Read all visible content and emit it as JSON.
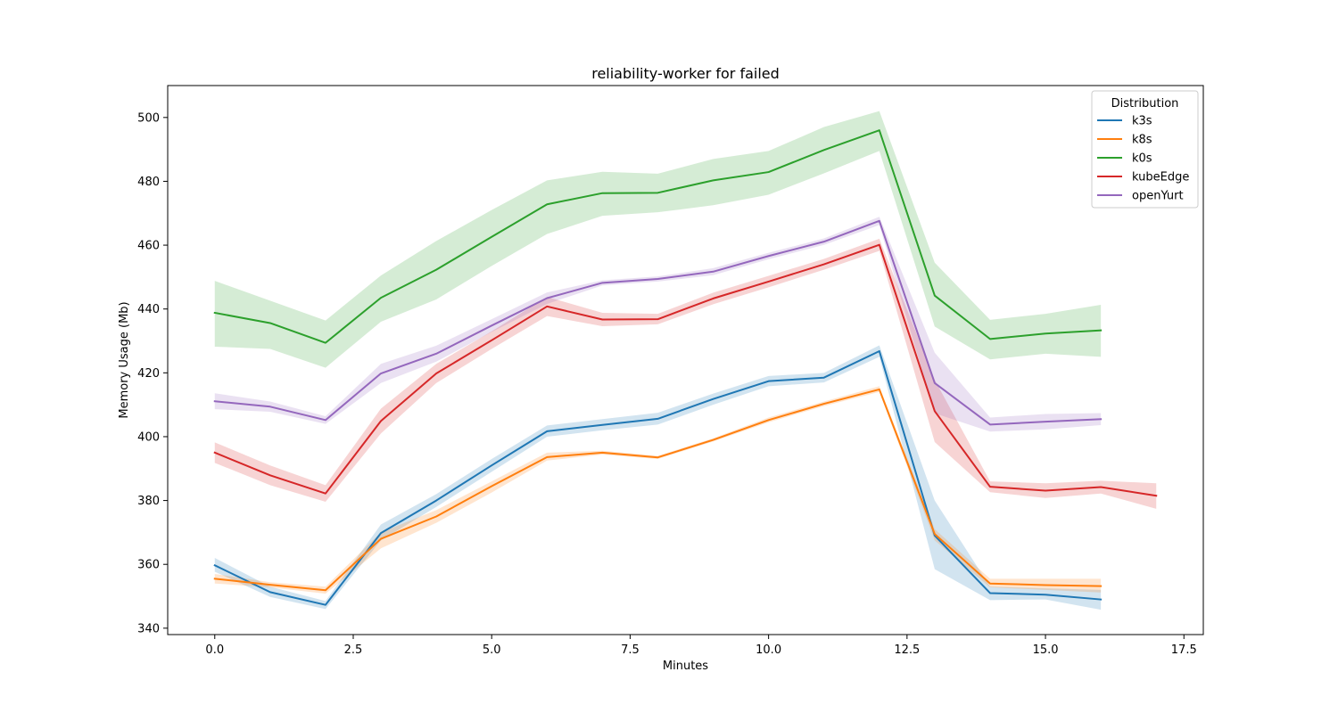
{
  "chart_data": {
    "type": "line",
    "title": "reliability-worker for failed",
    "xlabel": "Minutes",
    "ylabel": "Memory Usage (Mb)",
    "xlim": [
      -0.85,
      17.85
    ],
    "ylim": [
      338,
      510
    ],
    "xticks": [
      0.0,
      2.5,
      5.0,
      7.5,
      10.0,
      12.5,
      15.0,
      17.5
    ],
    "xtick_labels": [
      "0.0",
      "2.5",
      "5.0",
      "7.5",
      "10.0",
      "12.5",
      "15.0",
      "17.5"
    ],
    "yticks": [
      340,
      360,
      380,
      400,
      420,
      440,
      460,
      480,
      500
    ],
    "ytick_labels": [
      "340",
      "360",
      "380",
      "400",
      "420",
      "440",
      "460",
      "480",
      "500"
    ],
    "legend": {
      "title": "Distribution",
      "placement": "top-right"
    },
    "series": [
      {
        "name": "k3s",
        "color": "#1f77b4",
        "x": [
          0,
          1,
          2,
          3,
          4,
          5,
          6,
          7,
          8,
          9,
          10,
          11,
          12,
          13,
          14,
          15,
          16
        ],
        "values": [
          359.7,
          351.3,
          347.3,
          369.8,
          380.0,
          391.0,
          401.7,
          403.7,
          405.6,
          411.8,
          417.4,
          418.5,
          426.8,
          369.0,
          351.0,
          350.5,
          349.0
        ],
        "lower": [
          357.7,
          349.8,
          346.0,
          367.5,
          378.0,
          389.0,
          400.0,
          402.0,
          403.8,
          410.0,
          415.8,
          417.0,
          425.0,
          358.5,
          348.8,
          349.0,
          345.8
        ],
        "upper": [
          362.0,
          353.0,
          348.5,
          372.5,
          382.0,
          393.0,
          403.5,
          405.5,
          407.5,
          413.5,
          419.0,
          420.0,
          428.6,
          380.0,
          353.0,
          352.5,
          352.0
        ]
      },
      {
        "name": "k8s",
        "color": "#ff7f0e",
        "x": [
          0,
          1,
          2,
          3,
          4,
          5,
          6,
          7,
          8,
          9,
          10,
          11,
          12,
          13,
          14,
          15,
          16
        ],
        "values": [
          355.5,
          353.6,
          351.9,
          368.0,
          375.0,
          384.5,
          393.6,
          395.0,
          393.5,
          399.0,
          405.2,
          410.3,
          414.8,
          369.5,
          354.0,
          353.5,
          353.2
        ],
        "lower": [
          354.0,
          352.8,
          350.8,
          365.0,
          373.0,
          382.5,
          392.5,
          394.4,
          393.0,
          398.5,
          404.5,
          409.6,
          414.0,
          367.5,
          352.8,
          352.0,
          351.2
        ],
        "upper": [
          357.0,
          354.4,
          353.0,
          370.0,
          377.0,
          386.0,
          395.0,
          395.6,
          394.0,
          399.5,
          406.0,
          411.0,
          415.8,
          371.0,
          355.5,
          355.5,
          355.5
        ]
      },
      {
        "name": "k0s",
        "color": "#2ca02c",
        "x": [
          0,
          1,
          2,
          3,
          4,
          5,
          6,
          7,
          8,
          9,
          10,
          11,
          12,
          13,
          14,
          15,
          16
        ],
        "values": [
          438.8,
          435.6,
          429.4,
          443.5,
          452.3,
          462.6,
          472.8,
          476.3,
          476.4,
          480.3,
          482.9,
          489.8,
          496.0,
          444.2,
          430.6,
          432.3,
          433.3
        ],
        "lower": [
          428.2,
          427.5,
          421.6,
          436.0,
          443.0,
          453.5,
          463.5,
          469.2,
          470.3,
          472.5,
          475.8,
          482.5,
          489.5,
          434.5,
          424.2,
          426.0,
          425.0
        ],
        "upper": [
          448.8,
          442.6,
          436.4,
          450.5,
          461.3,
          471.0,
          480.3,
          483.0,
          482.4,
          487.0,
          489.5,
          497.0,
          502.0,
          454.5,
          436.6,
          438.5,
          441.3
        ]
      },
      {
        "name": "kubeEdge",
        "color": "#d62728",
        "x": [
          0,
          1,
          2,
          3,
          4,
          5,
          6,
          7,
          8,
          9,
          10,
          11,
          12,
          13,
          14,
          15,
          16,
          17
        ],
        "values": [
          395.0,
          387.9,
          382.2,
          404.9,
          419.8,
          430.2,
          440.8,
          436.7,
          436.8,
          443.3,
          448.6,
          454.0,
          460.1,
          408.0,
          384.3,
          383.1,
          384.2,
          381.5
        ],
        "lower": [
          391.8,
          384.8,
          379.6,
          401.0,
          416.8,
          427.5,
          437.8,
          434.6,
          435.2,
          441.5,
          446.8,
          452.3,
          458.2,
          398.3,
          382.6,
          380.8,
          382.2,
          377.4
        ],
        "upper": [
          398.2,
          391.0,
          384.8,
          408.8,
          422.8,
          433.0,
          443.8,
          438.8,
          438.5,
          445.1,
          450.4,
          455.7,
          462.0,
          417.8,
          386.0,
          385.4,
          386.2,
          385.4
        ]
      },
      {
        "name": "openYurt",
        "color": "#9467bd",
        "x": [
          0,
          1,
          2,
          3,
          4,
          5,
          6,
          7,
          8,
          9,
          10,
          11,
          12,
          13,
          14,
          15,
          16
        ],
        "values": [
          411.1,
          409.4,
          405.2,
          419.8,
          426.0,
          434.8,
          443.4,
          448.2,
          449.4,
          451.7,
          456.6,
          461.1,
          467.6,
          416.8,
          403.8,
          404.7,
          405.5
        ],
        "lower": [
          408.6,
          407.8,
          404.0,
          416.8,
          423.5,
          432.8,
          441.6,
          447.4,
          448.6,
          450.6,
          455.6,
          460.1,
          466.3,
          407.3,
          401.6,
          402.3,
          403.6
        ],
        "upper": [
          413.6,
          411.0,
          406.4,
          422.8,
          428.5,
          436.8,
          445.2,
          449.0,
          450.2,
          452.8,
          457.6,
          462.1,
          468.9,
          426.3,
          406.0,
          407.1,
          407.4
        ]
      }
    ]
  }
}
